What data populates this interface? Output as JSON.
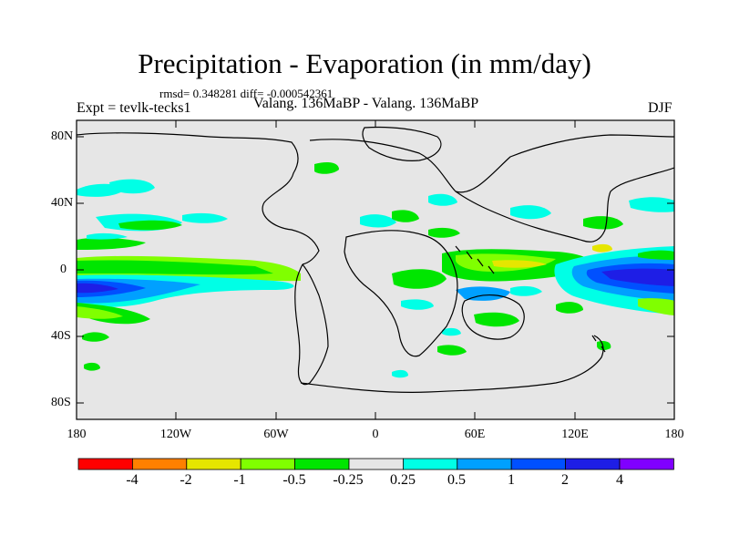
{
  "title": "Precipitation - Evaporation (in mm/day)",
  "stats": "rmsd= 0.348281 diff= -0.000542361",
  "experiment": "Expt = tevlk-tecks1",
  "subtitle": "Valang. 136MaBP - Valang. 136MaBP",
  "season": "DJF",
  "lat_labels": [
    "80N",
    "40N",
    "0",
    "40S",
    "80S"
  ],
  "lon_labels": [
    "180",
    "120W",
    "60W",
    "0",
    "60E",
    "120E",
    "180"
  ],
  "colorbar": {
    "labels": [
      "-4",
      "-2",
      "-1",
      "-0.5",
      "-0.25",
      "0.25",
      "0.5",
      "1",
      "2",
      "4"
    ],
    "colors": [
      "#ff0000",
      "#ff8000",
      "#e6e600",
      "#80ff00",
      "#00e600",
      "#e6e6e6",
      "#00ffe6",
      "#00a0ff",
      "#0050ff",
      "#1e1ee6",
      "#8000ff"
    ]
  },
  "colors": {
    "background_field": "#e6e6e6",
    "coastline": "#000000"
  }
}
